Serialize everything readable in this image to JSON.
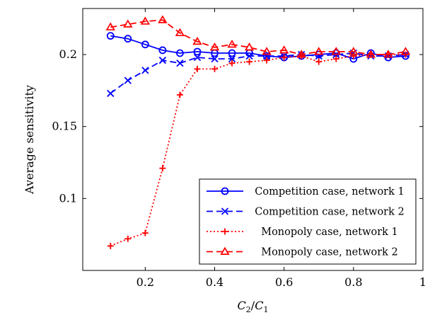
{
  "chart_data": {
    "type": "line",
    "title": "",
    "xlabel": "C2/C1",
    "ylabel": "Average sensitivity",
    "xlim": [
      0.02,
      1.0
    ],
    "ylim": [
      0.05,
      0.232
    ],
    "x_ticks": [
      {
        "value": 0.2,
        "label": "0.2"
      },
      {
        "value": 0.4,
        "label": "0.4"
      },
      {
        "value": 0.6,
        "label": "0.6"
      },
      {
        "value": 0.8,
        "label": "0.8"
      },
      {
        "value": 1.0,
        "label": "1"
      }
    ],
    "y_ticks": [
      {
        "value": 0.1,
        "label": "0.1"
      },
      {
        "value": 0.15,
        "label": "0.15"
      },
      {
        "value": 0.2,
        "label": "0.2"
      }
    ],
    "grid": false,
    "legend_position": "bottom-right",
    "x": [
      0.1,
      0.15,
      0.2,
      0.25,
      0.3,
      0.35,
      0.4,
      0.45,
      0.5,
      0.55,
      0.6,
      0.65,
      0.7,
      0.75,
      0.8,
      0.85,
      0.9,
      0.95
    ],
    "series": [
      {
        "name": "Competition case, network 1",
        "color": "#0000ff",
        "line_style": "solid",
        "marker": "circle",
        "values": [
          0.213,
          0.211,
          0.207,
          0.203,
          0.201,
          0.202,
          0.201,
          0.201,
          0.201,
          0.199,
          0.198,
          0.199,
          0.2,
          0.201,
          0.197,
          0.201,
          0.198,
          0.199
        ]
      },
      {
        "name": "Competition case, network 2",
        "color": "#0000ff",
        "line_style": "dashed",
        "marker": "x",
        "values": [
          0.173,
          0.182,
          0.189,
          0.196,
          0.194,
          0.198,
          0.197,
          0.197,
          0.199,
          0.199,
          0.199,
          0.2,
          0.199,
          0.2,
          0.201,
          0.199,
          0.199,
          0.2
        ]
      },
      {
        "name": "Monopoly case, network 1",
        "color": "#ff0000",
        "line_style": "dotted",
        "marker": "plus",
        "values": [
          0.067,
          0.072,
          0.076,
          0.121,
          0.172,
          0.19,
          0.19,
          0.194,
          0.195,
          0.196,
          0.198,
          0.199,
          0.195,
          0.197,
          0.199,
          0.2,
          0.2,
          0.2
        ]
      },
      {
        "name": "Monopoly case, network 2",
        "color": "#ff0000",
        "line_style": "dashed",
        "marker": "triangle",
        "values": [
          0.219,
          0.221,
          0.223,
          0.224,
          0.215,
          0.209,
          0.205,
          0.207,
          0.205,
          0.202,
          0.203,
          0.2,
          0.202,
          0.202,
          0.202,
          0.2,
          0.2,
          0.202
        ]
      }
    ]
  }
}
